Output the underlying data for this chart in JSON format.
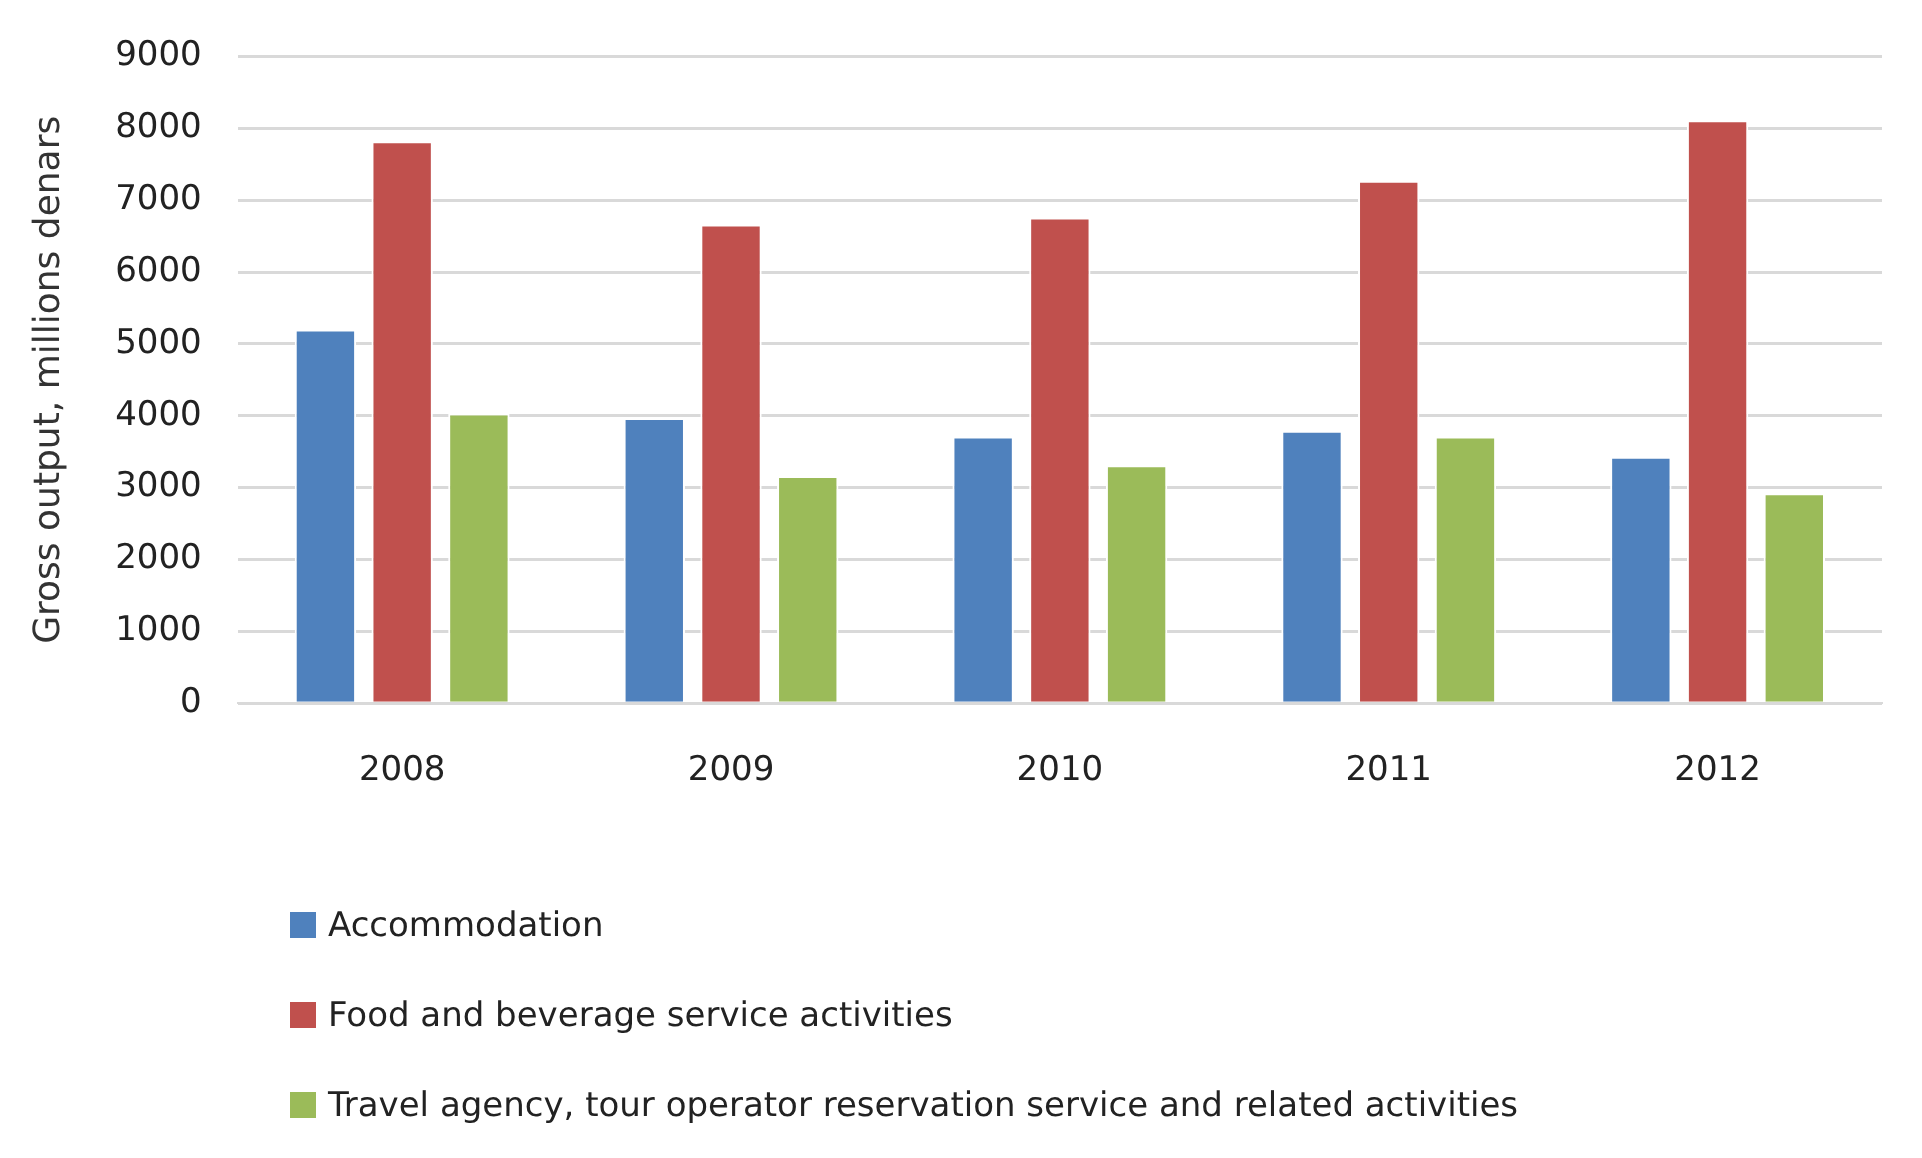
{
  "chart_data": {
    "type": "bar",
    "ylabel": "Gross output, millions denars",
    "categories": [
      "2008",
      "2009",
      "2010",
      "2011",
      "2012"
    ],
    "series": [
      {
        "name": "Accommodation",
        "color": "#4f81bd",
        "values": [
          5200,
          3970,
          3710,
          3790,
          3430
        ]
      },
      {
        "name": "Food and beverage service activities",
        "color": "#c0504d",
        "values": [
          7820,
          6660,
          6760,
          7270,
          8110
        ]
      },
      {
        "name": "Travel agency, tour operator reservation service and related activities",
        "color": "#9bbb59",
        "values": [
          4030,
          3160,
          3310,
          3710,
          2920
        ]
      }
    ],
    "ylim": [
      0,
      9000
    ],
    "yticks": [
      0,
      1000,
      2000,
      3000,
      4000,
      5000,
      6000,
      7000,
      8000,
      9000
    ],
    "grid": "y",
    "legend": "bottom"
  }
}
